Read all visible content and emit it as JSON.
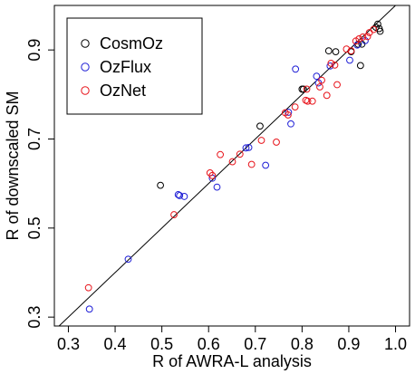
{
  "chart_data": {
    "type": "scatter",
    "xlabel": "R of AWRA-L analysis",
    "ylabel": "R of downscaled SM",
    "xlim": [
      0.27,
      1.03
    ],
    "ylim": [
      0.28,
      1.0
    ],
    "xticks": [
      "0.3",
      "0.4",
      "0.5",
      "0.6",
      "0.7",
      "0.8",
      "0.9",
      "1.0"
    ],
    "yticks": [
      "0.3",
      "0.5",
      "0.7",
      "0.9"
    ],
    "grid": false,
    "reference_line": "1:1",
    "legend_position": "top-left",
    "series": [
      {
        "name": "CosmOz",
        "color": "#000000",
        "points": [
          [
            0.962,
            0.958
          ],
          [
            0.965,
            0.948
          ],
          [
            0.967,
            0.942
          ],
          [
            0.958,
            0.951
          ],
          [
            0.905,
            0.896
          ],
          [
            0.872,
            0.896
          ],
          [
            0.857,
            0.898
          ],
          [
            0.928,
            0.913
          ],
          [
            0.925,
            0.865
          ],
          [
            0.92,
            0.913
          ],
          [
            0.8,
            0.812
          ],
          [
            0.803,
            0.812
          ],
          [
            0.71,
            0.729
          ],
          [
            0.497,
            0.596
          ]
        ]
      },
      {
        "name": "OzFlux",
        "color": "#1f1fd6",
        "points": [
          [
            0.345,
            0.318
          ],
          [
            0.428,
            0.43
          ],
          [
            0.535,
            0.575
          ],
          [
            0.538,
            0.573
          ],
          [
            0.548,
            0.571
          ],
          [
            0.608,
            0.612
          ],
          [
            0.618,
            0.592
          ],
          [
            0.68,
            0.68
          ],
          [
            0.686,
            0.681
          ],
          [
            0.722,
            0.641
          ],
          [
            0.771,
            0.76
          ],
          [
            0.776,
            0.734
          ],
          [
            0.786,
            0.857
          ],
          [
            0.831,
            0.841
          ],
          [
            0.835,
            0.826
          ],
          [
            0.86,
            0.864
          ],
          [
            0.902,
            0.877
          ],
          [
            0.918,
            0.911
          ],
          [
            0.935,
            0.921
          ]
        ]
      },
      {
        "name": "OzNet",
        "color": "#e8141b",
        "points": [
          [
            0.343,
            0.366
          ],
          [
            0.526,
            0.53
          ],
          [
            0.603,
            0.624
          ],
          [
            0.608,
            0.618
          ],
          [
            0.625,
            0.665
          ],
          [
            0.651,
            0.649
          ],
          [
            0.667,
            0.666
          ],
          [
            0.692,
            0.643
          ],
          [
            0.713,
            0.697
          ],
          [
            0.745,
            0.693
          ],
          [
            0.764,
            0.759
          ],
          [
            0.77,
            0.754
          ],
          [
            0.785,
            0.772
          ],
          [
            0.808,
            0.787
          ],
          [
            0.81,
            0.812
          ],
          [
            0.812,
            0.785
          ],
          [
            0.822,
            0.785
          ],
          [
            0.838,
            0.817
          ],
          [
            0.842,
            0.832
          ],
          [
            0.853,
            0.798
          ],
          [
            0.862,
            0.87
          ],
          [
            0.87,
            0.866
          ],
          [
            0.875,
            0.822
          ],
          [
            0.895,
            0.902
          ],
          [
            0.905,
            0.898
          ],
          [
            0.915,
            0.92
          ],
          [
            0.922,
            0.925
          ],
          [
            0.93,
            0.929
          ],
          [
            0.94,
            0.93
          ],
          [
            0.944,
            0.939
          ],
          [
            0.953,
            0.946
          ]
        ]
      }
    ]
  }
}
